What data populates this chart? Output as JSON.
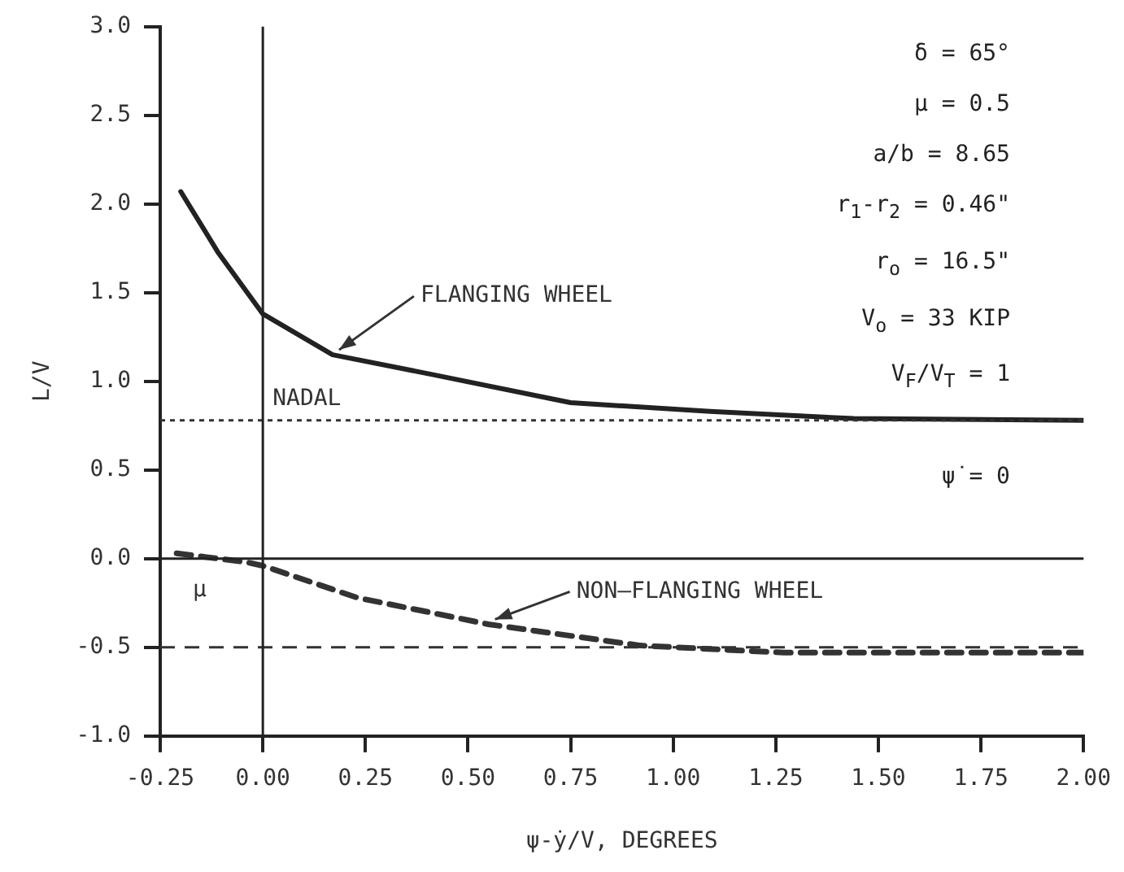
{
  "chart_data": {
    "type": "line",
    "xlabel": "ψ-ẏ/V, DEGREES",
    "ylabel": "L/V",
    "xlim": [
      -0.25,
      2.0
    ],
    "ylim": [
      -1.0,
      3.0
    ],
    "xticks": [
      -0.25,
      {
        "value": 0,
        "label": "0.00"
      },
      0.25,
      {
        "value": 0.5,
        "label": "0.50"
      },
      0.75,
      {
        "value": 1,
        "label": "1.00"
      },
      1.25,
      {
        "value": 1.5,
        "label": "1.50"
      },
      1.75,
      {
        "value": 2,
        "label": "2.00"
      }
    ],
    "yticks": [
      {
        "value": -1,
        "label": "-1.0"
      },
      -0.5,
      {
        "value": 0,
        "label": "0.0"
      },
      0.5,
      {
        "value": 1,
        "label": "1.0"
      },
      1.5,
      {
        "value": 2,
        "label": "2.0"
      },
      2.5,
      {
        "value": 3,
        "label": "3.0"
      }
    ],
    "series": [
      {
        "color": "#222222",
        "line_style": "solid",
        "x": [
          -0.2,
          -0.11,
          0,
          0.17,
          0.41,
          0.75,
          1.09,
          1.44,
          2.0
        ],
        "values": [
          2.07,
          1.73,
          1.38,
          1.15,
          1.04,
          0.88,
          0.83,
          0.79,
          0.78
        ]
      },
      {
        "color": "#333333",
        "line_style": "dashed",
        "x": [
          -0.21,
          -0.04,
          0,
          0.23,
          0.55,
          0.92,
          1.27,
          2.0
        ],
        "values": [
          0.03,
          -0.02,
          -0.04,
          -0.22,
          -0.37,
          -0.49,
          -0.53,
          -0.53
        ]
      }
    ],
    "ref_lines": [
      {
        "axis": "y",
        "value": 0.78,
        "label": "NADAL",
        "line_style": "dotted",
        "color": "#333333"
      },
      {
        "axis": "y",
        "value": -0.5,
        "label": "μ",
        "line_style": "dashed",
        "color": "#333333"
      },
      {
        "axis": "x",
        "value": 0,
        "color": "#222222",
        "line_style": "solid"
      },
      {
        "axis": "y",
        "value": 0,
        "color": "#222222",
        "line_style": "solid"
      }
    ],
    "annotations": [
      {
        "text": "FLANGING WHEEL",
        "x": 0.17,
        "y": 1.15
      },
      {
        "text": "NON–FLANGING WHEEL",
        "x": 0.55,
        "y": -0.37
      },
      "δ = 65°",
      "μ = 0.5",
      "a/b = 8.65",
      "r$_{1}$-r$_{2}$ = 0.46\"",
      "r$_{o}$ = 16.5\"",
      "V$_{o}$ = 33 KIP",
      "V$_{F}$/V$_{T}$ = 1",
      "ψ̇ = 0"
    ],
    "grid": false,
    "legend": false,
    "marker": "none"
  }
}
